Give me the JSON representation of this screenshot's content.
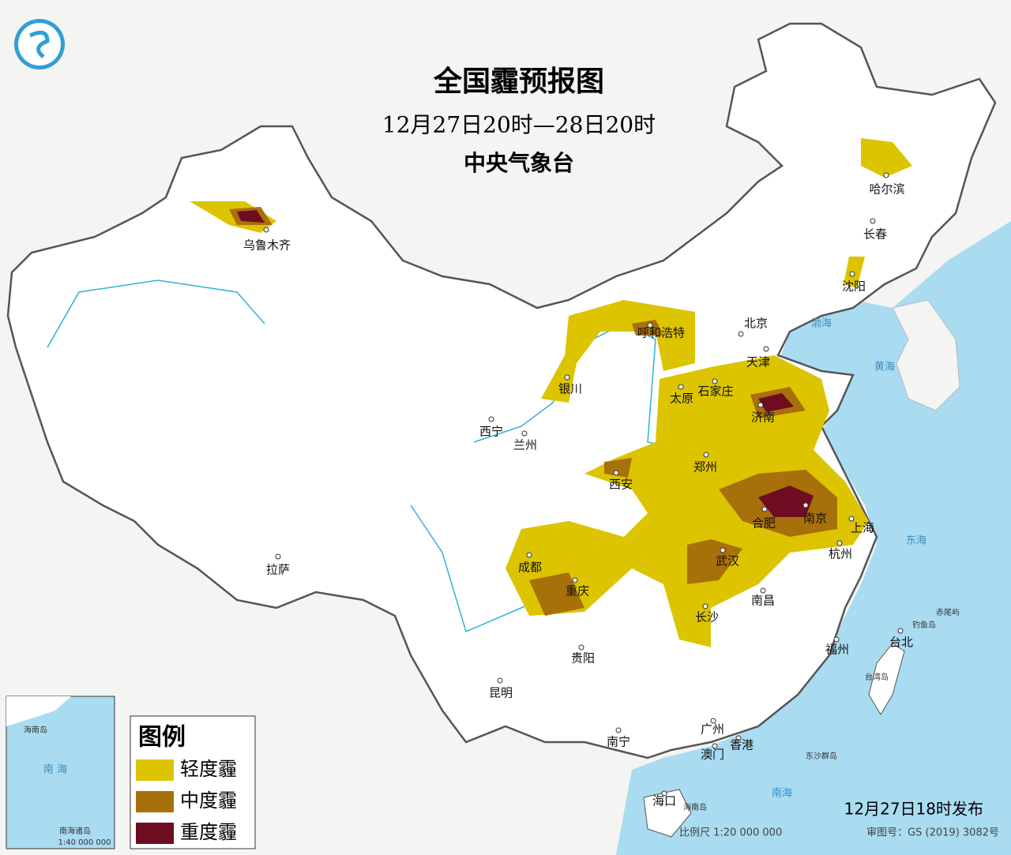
{
  "header": {
    "title": "全国霾预报图",
    "period": "12月27日20时—28日20时",
    "issuer": "中央气象台"
  },
  "cities": [
    "乌鲁木齐",
    "哈尔滨",
    "长春",
    "沈阳",
    "北京",
    "天津",
    "呼和浩特",
    "银川",
    "太原",
    "石家庄",
    "济南",
    "西宁",
    "兰州",
    "郑州",
    "西安",
    "合肥",
    "南京",
    "上海",
    "杭州",
    "成都",
    "重庆",
    "武汉",
    "长沙",
    "南昌",
    "福州",
    "台北",
    "贵阳",
    "昆明",
    "拉萨",
    "南宁",
    "广州",
    "香港",
    "澳门",
    "海口"
  ],
  "seas": [
    "渤海",
    "黄海",
    "东海",
    "南海",
    "台湾岛",
    "钓鱼岛",
    "赤尾屿",
    "东沙群岛",
    "海南岛"
  ],
  "legend": {
    "title": "图例",
    "items": [
      "轻度霾",
      "中度霾",
      "重度霾"
    ],
    "colors": [
      "#dcc400",
      "#a8700a",
      "#6e0d22"
    ]
  },
  "inset": {
    "labels": [
      "海南岛",
      "南 海",
      "南海诸岛",
      "1:40 000 000"
    ]
  },
  "footer": {
    "issued": "12月27日18时发布",
    "scale": "比例尺 1:20 000 000",
    "review": "审图号：GS (2019) 3082号"
  }
}
